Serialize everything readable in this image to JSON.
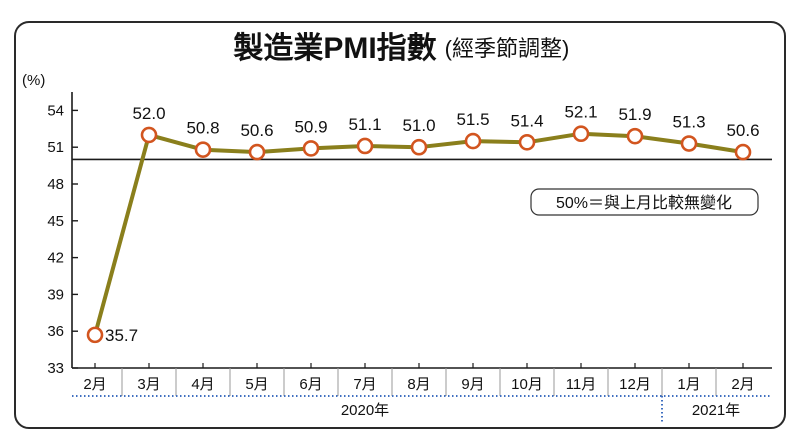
{
  "chart_data": {
    "type": "line",
    "title": "製造業PMI指數",
    "subtitle": "(經季節調整)",
    "ylabel": "(%)",
    "ylim": [
      33,
      55.5
    ],
    "yticks": [
      33,
      36,
      39,
      42,
      45,
      48,
      51,
      54
    ],
    "reference_value": 50,
    "categories": [
      "2月",
      "3月",
      "4月",
      "5月",
      "6月",
      "7月",
      "8月",
      "9月",
      "10月",
      "11月",
      "12月",
      "1月",
      "2月"
    ],
    "year_groups": [
      {
        "label": "2020年",
        "from": 0,
        "to": 10
      },
      {
        "label": "2021年",
        "from": 11,
        "to": 12
      }
    ],
    "series": [
      {
        "values": [
          35.7,
          52.0,
          50.8,
          50.6,
          50.9,
          51.1,
          51.0,
          51.5,
          51.4,
          52.1,
          51.9,
          51.3,
          50.6
        ],
        "labels": [
          "35.7",
          "52.0",
          "50.8",
          "50.6",
          "50.9",
          "51.1",
          "51.0",
          "51.5",
          "51.4",
          "52.1",
          "51.9",
          "51.3",
          "50.6"
        ]
      }
    ],
    "colors": {
      "line": "#8a7f1c",
      "marker": "#d2551f",
      "marker_fill": "#ffffff",
      "dotted": "#3f6fc0"
    },
    "annotation": "50%＝與上月比較無變化"
  }
}
